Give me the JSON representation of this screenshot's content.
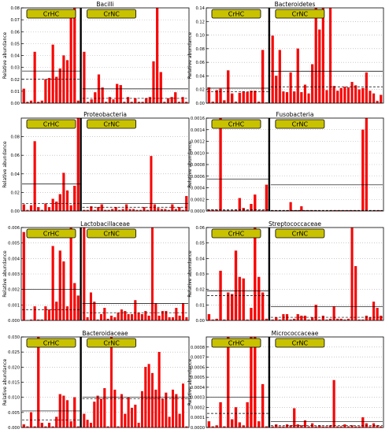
{
  "figure": {
    "ylabel": "Relative abundance",
    "group_labels": [
      "CrHC",
      "CrNC"
    ],
    "colors": {
      "bar": "#ff0000",
      "bar_edge": "#cc0000",
      "badge": "#c8c200",
      "divider": "#000000",
      "grid": "#aaaaaa"
    }
  },
  "chart_data": [
    {
      "type": "bar",
      "title": "Bacilli",
      "ylim": [
        0,
        0.08
      ],
      "yticks": [
        "0.00",
        "0.01",
        "0.02",
        "0.03",
        "0.04",
        "0.05",
        "0.06",
        "0.07",
        "0.08"
      ],
      "groups": [
        {
          "name": "CrHC",
          "values": [
            0.012,
            0.001,
            0.002,
            0.043,
            0.001,
            0.002,
            0.02,
            0.021,
            0.049,
            0.022,
            0.029,
            0.04,
            0.036,
            0.073,
            0.08,
            0.002
          ],
          "mean": 0.027,
          "median": 0.02
        },
        {
          "name": "CrNC",
          "values": [
            0.043,
            0.001,
            0.003,
            0.009,
            0.024,
            0.013,
            0.001,
            0.005,
            0.003,
            0.016,
            0.015,
            0.001,
            0.005,
            0.001,
            0.004,
            0.001,
            0.001,
            0.004,
            0.005,
            0.035,
            0.08,
            0.026,
            0.001,
            0.004,
            0.005,
            0.009,
            0.001,
            0.005,
            0.001
          ],
          "mean": 0.012,
          "median": 0.004
        }
      ]
    },
    {
      "type": "bar",
      "title": "Bacteroidetes",
      "ylim": [
        0,
        0.14
      ],
      "yticks": [
        "0.00",
        "0.02",
        "0.04",
        "0.06",
        "0.08",
        "0.10",
        "0.12",
        "0.14"
      ],
      "groups": [
        {
          "name": "CrHC",
          "values": [
            0.023,
            0.002,
            0.019,
            0.021,
            0.004,
            0.048,
            0.014,
            0.002,
            0.015,
            0.017,
            0.016,
            0.018,
            0.018,
            0.002,
            0.078,
            0.001
          ],
          "mean": 0.022,
          "median": 0.017
        },
        {
          "name": "CrNC",
          "values": [
            0.099,
            0.04,
            0.078,
            0.017,
            0.016,
            0.045,
            0.017,
            0.08,
            0.016,
            0.027,
            0.014,
            0.057,
            0.14,
            0.108,
            0.14,
            0.019,
            0.14,
            0.025,
            0.018,
            0.022,
            0.024,
            0.023,
            0.031,
            0.026,
            0.02,
            0.022,
            0.045,
            0.018,
            0.014,
            0.003,
            0.012
          ],
          "mean": 0.047,
          "median": 0.024
        }
      ]
    },
    {
      "type": "bar",
      "title": "Proteobacteria",
      "ylim": [
        0,
        0.1
      ],
      "yticks": [
        "0.00",
        "0.02",
        "0.04",
        "0.06",
        "0.08"
      ],
      "groups": [
        {
          "name": "CrHC",
          "values": [
            0.007,
            0.001,
            0.006,
            0.075,
            0.004,
            0.001,
            0.008,
            0.004,
            0.013,
            0.01,
            0.018,
            0.041,
            0.022,
            0.006,
            0.027,
            0.1
          ],
          "mean": 0.029,
          "median": 0.008
        },
        {
          "name": "CrNC",
          "values": [
            0.001,
            0.001,
            0.005,
            0.001,
            0.004,
            0.007,
            0.001,
            0.001,
            0.002,
            0.004,
            0.001,
            0.002,
            0.007,
            0.002,
            0.002,
            0.001,
            0.001,
            0.004,
            0.001,
            0.059,
            0.007,
            0.003,
            0.002,
            0.002,
            0.001,
            0.007,
            0.002,
            0.004,
            0.001,
            0.016
          ],
          "mean": 0.008,
          "median": 0.004
        }
      ]
    },
    {
      "type": "bar",
      "title": "Fusobacteria",
      "ylim": [
        0,
        0.0016
      ],
      "yticks": [
        "0.0000",
        "0.0002",
        "0.0004",
        "0.0006",
        "0.0008",
        "0.0010",
        "0.0012",
        "0.0014",
        "0.0016"
      ],
      "groups": [
        {
          "name": "CrHC",
          "values": [
            2e-05,
            2e-05,
            2e-05,
            0.0016,
            1e-05,
            1e-05,
            1e-05,
            2e-05,
            0.00022,
            5e-05,
            1e-05,
            0.00012,
            0.00028,
            1e-05,
            1e-05,
            0.00045
          ],
          "mean": 0.00055,
          "median": 2e-05
        },
        {
          "name": "CrNC",
          "values": [
            1e-05,
            1e-05,
            1e-05,
            1e-05,
            1e-05,
            0.00015,
            1e-05,
            1e-05,
            8e-05,
            1e-05,
            1e-05,
            1e-05,
            1e-05,
            1e-05,
            1e-05,
            1e-05,
            1e-05,
            1e-05,
            1e-05,
            1e-05,
            1e-05,
            1e-05,
            1e-05,
            1e-05,
            1e-05,
            0.0014,
            0.0016,
            1e-05,
            1e-05,
            1e-05,
            1e-05
          ],
          "mean": 0.00045,
          "median": 1e-05
        }
      ]
    },
    {
      "type": "bar",
      "title": "Lactobacillaceae",
      "ylim": [
        0,
        0.006
      ],
      "yticks": [
        "0.000",
        "0.001",
        "0.002",
        "0.003",
        "0.004",
        "0.005",
        "0.006"
      ],
      "groups": [
        {
          "name": "CrHC",
          "values": [
            0.0057,
            2e-05,
            5e-05,
            0.0009,
            5e-05,
            5e-05,
            0.0009,
            0.0007,
            0.0048,
            0.0012,
            0.0045,
            0.0038,
            0.0009,
            0.006,
            0.0024,
            0.0016
          ],
          "mean": 0.002,
          "median": 0.0007
        },
        {
          "name": "CrNC",
          "values": [
            0.006,
            0.0002,
            0.0018,
            0.0012,
            5e-05,
            0.0004,
            0.0008,
            0.0001,
            0.0003,
            0.0002,
            0.0005,
            0.0007,
            0.0006,
            0.0004,
            0.0004,
            0.0013,
            0.0005,
            0.0004,
            0.0006,
            0.0003,
            0.006,
            0.0011,
            0.0003,
            0.0006,
            0.0006,
            0.0002,
            0.0002,
            0.0008,
            0.0003,
            0.0011,
            0.0002
          ],
          "mean": 0.0011,
          "median": 0.0005
        }
      ]
    },
    {
      "type": "bar",
      "title": "Streptococcaceae",
      "ylim": [
        0,
        0.06
      ],
      "yticks": [
        "0.00",
        "0.01",
        "0.02",
        "0.03",
        "0.04",
        "0.05",
        "0.06"
      ],
      "groups": [
        {
          "name": "CrHC",
          "values": [
            0.004,
            0.0005,
            0.001,
            0.032,
            0.0005,
            0.018,
            0.017,
            0.045,
            0.028,
            0.027,
            0.0005,
            0.008,
            0.06,
            0.028,
            0.018,
            0.001
          ],
          "mean": 0.019,
          "median": 0.016
        },
        {
          "name": "CrNC",
          "values": [
            0.0005,
            0.002,
            0.0005,
            0.004,
            0.004,
            0.0005,
            0.001,
            0.004,
            0.003,
            0.003,
            0.0005,
            0.002,
            0.01,
            0.0005,
            0.003,
            0.0005,
            0.001,
            0.009,
            0.001,
            0.001,
            0.0005,
            0.001,
            0.06,
            0.035,
            0.0005,
            0.0005,
            0.003,
            0.002,
            0.012,
            0.008,
            0.003
          ],
          "mean": 0.009,
          "median": 0.002
        }
      ]
    },
    {
      "type": "bar",
      "title": "Bacteroidaceae",
      "ylim": [
        0,
        0.03
      ],
      "yticks": [
        "0.000",
        "0.005",
        "0.010",
        "0.015",
        "0.020",
        "0.025",
        "0.030"
      ],
      "groups": [
        {
          "name": "CrHC",
          "values": [
            0.001,
            0.0003,
            0.005,
            0.0003,
            0.03,
            0.0015,
            0.0003,
            0.0015,
            0.0003,
            0.0035,
            0.011,
            0.0105,
            0.009,
            0.002,
            0.01,
            0.0003
          ],
          "mean": 0.0055,
          "median": 0.0025
        },
        {
          "name": "CrNC",
          "values": [
            0.0045,
            0.0025,
            0.0015,
            0.0085,
            0.0105,
            0.0095,
            0.013,
            0.0003,
            0.03,
            0.0125,
            0.0003,
            0.011,
            0.0045,
            0.01,
            0.0065,
            0.0075,
            0.0015,
            0.012,
            0.02,
            0.021,
            0.018,
            0.0125,
            0.025,
            0.0095,
            0.0115,
            0.0035,
            0.0125,
            0.011,
            0.0045,
            0.0145,
            0.0003
          ],
          "mean": 0.01,
          "median": 0.0095
        }
      ]
    },
    {
      "type": "bar",
      "title": "Micrococcaceae",
      "ylim": [
        0,
        0.0009
      ],
      "yticks": [
        "0.0000",
        "0.0001",
        "0.0002",
        "0.0003",
        "0.0004",
        "0.0005",
        "0.0006",
        "0.0007",
        "0.0008"
      ],
      "groups": [
        {
          "name": "CrHC",
          "values": [
            6e-05,
            1e-05,
            2e-05,
            0.00025,
            1e-05,
            0.0009,
            8e-05,
            0.0002,
            5e-05,
            2e-05,
            0.00025,
            0.0009,
            0.0009,
            6e-05,
            0.00043,
            1e-05
          ],
          "mean": 0.0003,
          "median": 0.00014
        },
        {
          "name": "CrNC",
          "values": [
            1e-05,
            3e-05,
            1e-05,
            1e-05,
            3e-05,
            2e-05,
            0.00019,
            3e-05,
            2e-05,
            7e-05,
            1e-05,
            4e-05,
            1e-05,
            2e-05,
            1e-05,
            1e-05,
            2e-05,
            0.00047,
            1e-05,
            1e-05,
            3e-05,
            1e-05,
            2e-05,
            1e-05,
            1e-05,
            0.0001,
            4e-05,
            1e-05,
            4e-05,
            2e-05,
            1e-05
          ],
          "mean": 6e-05,
          "median": 2e-05
        }
      ]
    }
  ]
}
